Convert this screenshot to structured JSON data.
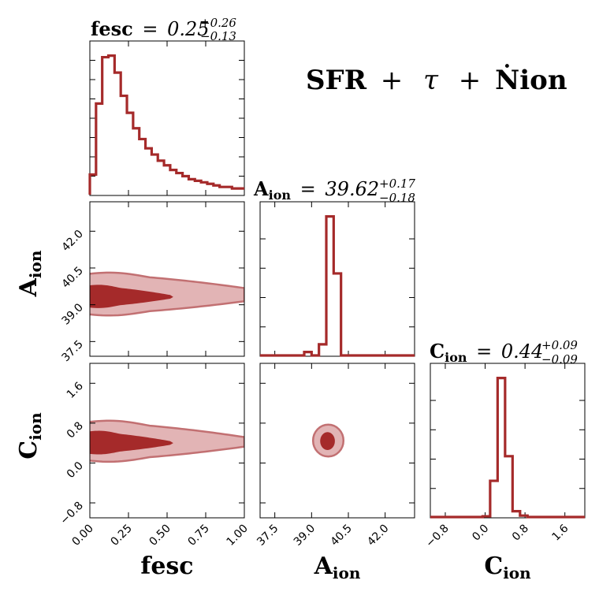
{
  "chart_data": {
    "type": "corner",
    "title": {
      "bold": "SFR",
      "plus1": "+",
      "tau": "τ",
      "plus2": "+",
      "nion": "Ṅion"
    },
    "parameters": [
      {
        "name": "fesc",
        "axis_label": "fesc",
        "range": [
          0.0,
          1.0
        ],
        "ticks": [
          0.0,
          0.25,
          0.5,
          0.75,
          1.0
        ],
        "tick_labels": [
          "0.00",
          "0.25",
          "0.50",
          "0.75",
          "1.00"
        ],
        "stat": {
          "label": "fesc",
          "eq": "=",
          "median": "0.25",
          "plus": "+0.26",
          "minus": "−0.13"
        },
        "hist_bins": [
          0.0,
          0.04,
          0.08,
          0.12,
          0.16,
          0.2,
          0.24,
          0.28,
          0.32,
          0.36,
          0.4,
          0.44,
          0.48,
          0.52,
          0.56,
          0.6,
          0.64,
          0.68,
          0.72,
          0.76,
          0.8,
          0.84,
          0.88,
          0.92,
          0.96,
          1.0
        ],
        "hist_values": [
          0.13,
          0.59,
          0.89,
          0.9,
          0.79,
          0.64,
          0.53,
          0.43,
          0.36,
          0.3,
          0.26,
          0.22,
          0.19,
          0.16,
          0.14,
          0.12,
          0.1,
          0.09,
          0.08,
          0.07,
          0.06,
          0.05,
          0.05,
          0.04,
          0.04
        ]
      },
      {
        "name": "A_ion",
        "axis_label": {
          "main": "A",
          "sub": "ion"
        },
        "range": [
          36.9,
          43.2
        ],
        "ticks": [
          37.5,
          39.0,
          40.5,
          42.0
        ],
        "tick_labels": [
          "37.5",
          "39.0",
          "40.5",
          "42.0"
        ],
        "stat": {
          "label": "A",
          "sub": "ion",
          "eq": "=",
          "median": "39.62",
          "plus": "+0.17",
          "minus": "−0.18"
        },
        "hist_bins": [
          36.9,
          37.2,
          37.5,
          37.8,
          38.1,
          38.4,
          38.7,
          39.0,
          39.3,
          39.6,
          39.9,
          40.2,
          40.5,
          40.8,
          41.1,
          41.4,
          41.7,
          42.0,
          42.3,
          42.6,
          42.9,
          43.2
        ],
        "hist_values": [
          0.0,
          0.0,
          0.0,
          0.0,
          0.0,
          0.0,
          0.025,
          0.0,
          0.08,
          1.0,
          0.59,
          0.0,
          0.0,
          0.0,
          0.0,
          0.0,
          0.0,
          0.0,
          0.0,
          0.0,
          0.0
        ]
      },
      {
        "name": "C_ion",
        "axis_label": {
          "main": "C",
          "sub": "ion"
        },
        "range": [
          -1.1,
          2.0
        ],
        "ticks": [
          -0.8,
          0.0,
          0.8,
          1.6
        ],
        "tick_labels": [
          "−0.8",
          "0.0",
          "0.8",
          "1.6"
        ],
        "stat": {
          "label": "C",
          "sub": "ion",
          "eq": "=",
          "median": "0.44",
          "plus": "+0.09",
          "minus": "−0.09"
        },
        "hist_bins": [
          -1.1,
          -0.95,
          -0.8,
          -0.65,
          -0.5,
          -0.35,
          -0.2,
          -0.05,
          0.1,
          0.25,
          0.4,
          0.55,
          0.7,
          0.85,
          1.0,
          1.15,
          1.3,
          1.45,
          1.6,
          1.75,
          1.9,
          2.0
        ],
        "hist_values": [
          0.0,
          0.0,
          0.0,
          0.0,
          0.0,
          0.0,
          0.0,
          0.005,
          0.25,
          0.96,
          0.42,
          0.04,
          0.01,
          0.0,
          0.0,
          0.0,
          0.0,
          0.0,
          0.0,
          0.0,
          0.0
        ]
      }
    ],
    "contours": [
      {
        "x": "fesc",
        "y": "A_ion",
        "level68": {
          "center": [
            0.0,
            39.32
          ],
          "x_end": 0.52,
          "half_width": 0.52
        },
        "level95": {
          "center": [
            0.0,
            39.4
          ],
          "x_end": 1.0,
          "half_width_left": 0.95,
          "half_width_right": 0.28
        }
      },
      {
        "x": "fesc",
        "y": "C_ion",
        "level68": {
          "center": [
            0.0,
            0.4
          ],
          "x_end": 0.52,
          "half_width": 0.26
        },
        "level95": {
          "center": [
            0.0,
            0.42
          ],
          "x_end": 1.0,
          "half_width_left": 0.45,
          "half_width_right": 0.1
        }
      },
      {
        "x": "A_ion",
        "y": "C_ion",
        "level68": {
          "center": [
            39.65,
            0.44
          ],
          "rx": 0.3,
          "ry": 0.18
        },
        "level95": {
          "center": [
            39.68,
            0.45
          ],
          "rx": 0.62,
          "ry": 0.32
        }
      }
    ]
  }
}
